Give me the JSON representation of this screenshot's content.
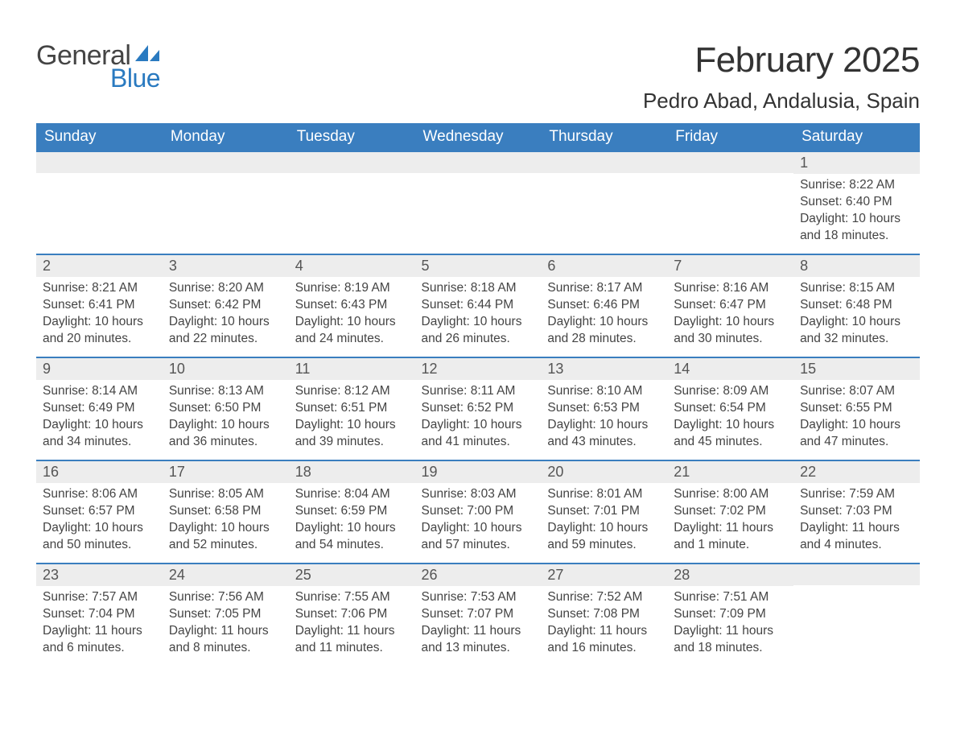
{
  "logo": {
    "top": "General",
    "bottom": "Blue",
    "sail_color": "#2a7ac0"
  },
  "title": "February 2025",
  "location": "Pedro Abad, Andalusia, Spain",
  "colors": {
    "header_bg": "#3a7ebf",
    "header_text": "#ffffff",
    "daybar_bg": "#ededed",
    "daybar_border": "#3a7ebf",
    "body_text": "#444444",
    "title_text": "#333333",
    "logo_gray": "#444444",
    "logo_blue": "#2a7ac0",
    "page_bg": "#ffffff"
  },
  "fonts": {
    "family": "Arial",
    "month_title_pt": 33,
    "location_pt": 20,
    "header_pt": 14,
    "daynum_pt": 14,
    "body_pt": 12
  },
  "weekdays": [
    "Sunday",
    "Monday",
    "Tuesday",
    "Wednesday",
    "Thursday",
    "Friday",
    "Saturday"
  ],
  "first_weekday_index": 6,
  "days": [
    {
      "n": "1",
      "sunrise": "8:22 AM",
      "sunset": "6:40 PM",
      "daylight": "10 hours and 18 minutes."
    },
    {
      "n": "2",
      "sunrise": "8:21 AM",
      "sunset": "6:41 PM",
      "daylight": "10 hours and 20 minutes."
    },
    {
      "n": "3",
      "sunrise": "8:20 AM",
      "sunset": "6:42 PM",
      "daylight": "10 hours and 22 minutes."
    },
    {
      "n": "4",
      "sunrise": "8:19 AM",
      "sunset": "6:43 PM",
      "daylight": "10 hours and 24 minutes."
    },
    {
      "n": "5",
      "sunrise": "8:18 AM",
      "sunset": "6:44 PM",
      "daylight": "10 hours and 26 minutes."
    },
    {
      "n": "6",
      "sunrise": "8:17 AM",
      "sunset": "6:46 PM",
      "daylight": "10 hours and 28 minutes."
    },
    {
      "n": "7",
      "sunrise": "8:16 AM",
      "sunset": "6:47 PM",
      "daylight": "10 hours and 30 minutes."
    },
    {
      "n": "8",
      "sunrise": "8:15 AM",
      "sunset": "6:48 PM",
      "daylight": "10 hours and 32 minutes."
    },
    {
      "n": "9",
      "sunrise": "8:14 AM",
      "sunset": "6:49 PM",
      "daylight": "10 hours and 34 minutes."
    },
    {
      "n": "10",
      "sunrise": "8:13 AM",
      "sunset": "6:50 PM",
      "daylight": "10 hours and 36 minutes."
    },
    {
      "n": "11",
      "sunrise": "8:12 AM",
      "sunset": "6:51 PM",
      "daylight": "10 hours and 39 minutes."
    },
    {
      "n": "12",
      "sunrise": "8:11 AM",
      "sunset": "6:52 PM",
      "daylight": "10 hours and 41 minutes."
    },
    {
      "n": "13",
      "sunrise": "8:10 AM",
      "sunset": "6:53 PM",
      "daylight": "10 hours and 43 minutes."
    },
    {
      "n": "14",
      "sunrise": "8:09 AM",
      "sunset": "6:54 PM",
      "daylight": "10 hours and 45 minutes."
    },
    {
      "n": "15",
      "sunrise": "8:07 AM",
      "sunset": "6:55 PM",
      "daylight": "10 hours and 47 minutes."
    },
    {
      "n": "16",
      "sunrise": "8:06 AM",
      "sunset": "6:57 PM",
      "daylight": "10 hours and 50 minutes."
    },
    {
      "n": "17",
      "sunrise": "8:05 AM",
      "sunset": "6:58 PM",
      "daylight": "10 hours and 52 minutes."
    },
    {
      "n": "18",
      "sunrise": "8:04 AM",
      "sunset": "6:59 PM",
      "daylight": "10 hours and 54 minutes."
    },
    {
      "n": "19",
      "sunrise": "8:03 AM",
      "sunset": "7:00 PM",
      "daylight": "10 hours and 57 minutes."
    },
    {
      "n": "20",
      "sunrise": "8:01 AM",
      "sunset": "7:01 PM",
      "daylight": "10 hours and 59 minutes."
    },
    {
      "n": "21",
      "sunrise": "8:00 AM",
      "sunset": "7:02 PM",
      "daylight": "11 hours and 1 minute."
    },
    {
      "n": "22",
      "sunrise": "7:59 AM",
      "sunset": "7:03 PM",
      "daylight": "11 hours and 4 minutes."
    },
    {
      "n": "23",
      "sunrise": "7:57 AM",
      "sunset": "7:04 PM",
      "daylight": "11 hours and 6 minutes."
    },
    {
      "n": "24",
      "sunrise": "7:56 AM",
      "sunset": "7:05 PM",
      "daylight": "11 hours and 8 minutes."
    },
    {
      "n": "25",
      "sunrise": "7:55 AM",
      "sunset": "7:06 PM",
      "daylight": "11 hours and 11 minutes."
    },
    {
      "n": "26",
      "sunrise": "7:53 AM",
      "sunset": "7:07 PM",
      "daylight": "11 hours and 13 minutes."
    },
    {
      "n": "27",
      "sunrise": "7:52 AM",
      "sunset": "7:08 PM",
      "daylight": "11 hours and 16 minutes."
    },
    {
      "n": "28",
      "sunrise": "7:51 AM",
      "sunset": "7:09 PM",
      "daylight": "11 hours and 18 minutes."
    }
  ],
  "labels": {
    "sunrise": "Sunrise: ",
    "sunset": "Sunset: ",
    "daylight": "Daylight: "
  }
}
